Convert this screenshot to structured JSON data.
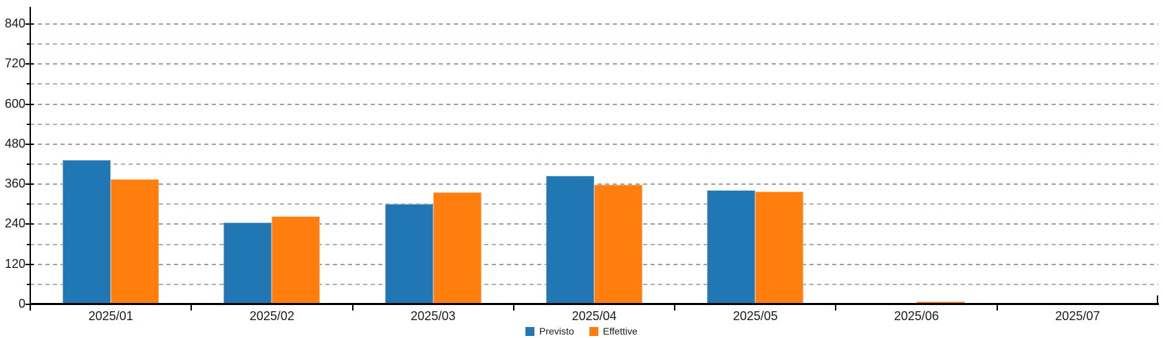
{
  "chart_data": {
    "type": "bar",
    "title": "",
    "xlabel": "",
    "ylabel": "",
    "categories": [
      "2025/01",
      "2025/02",
      "2025/03",
      "2025/04",
      "2025/05",
      "2025/06",
      "2025/07"
    ],
    "series": [
      {
        "name": "Previsto",
        "color": "#2077B4",
        "border_color": "#7FA9CB",
        "values": [
          432,
          245,
          301,
          386,
          341,
          0,
          0
        ]
      },
      {
        "name": "Effettive",
        "color": "#FF7E0E",
        "border_color": "#FFAC64",
        "values": [
          375,
          263,
          336,
          359,
          337,
          9,
          0
        ]
      }
    ],
    "ylim": [
      0,
      890
    ],
    "y_axis": {
      "major_tick_step": 120,
      "minor_tick_step": 60,
      "tick_labels": [
        "840",
        "720",
        "600",
        "480",
        "360",
        "240",
        "120",
        "0"
      ]
    },
    "grid": {
      "horizontal": true,
      "style": "dashed",
      "color": "#A3A3A3"
    },
    "axis_color": "#000000",
    "legend": {
      "position": "bottom-center",
      "items": [
        "Previsto",
        "Effettive"
      ]
    }
  }
}
